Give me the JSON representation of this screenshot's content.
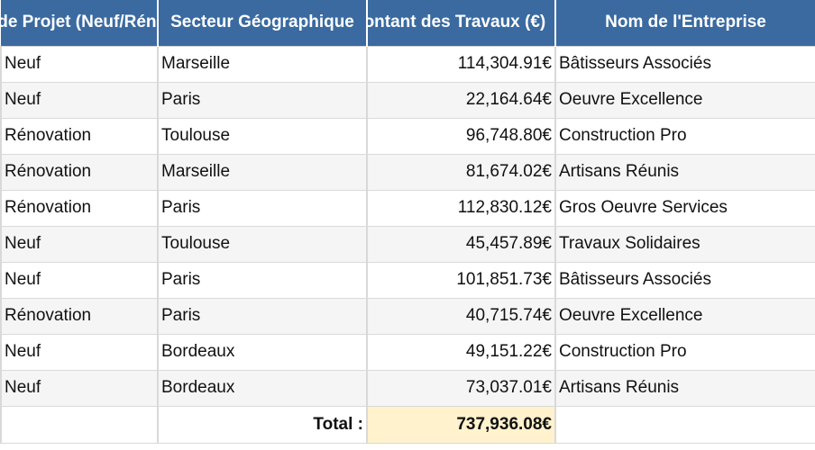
{
  "headers": [
    "Type de Projet (Neuf/Rénovation)",
    "Secteur Géographique",
    "Montant des Travaux (€)",
    "Nom de l'Entreprise"
  ],
  "rows": [
    {
      "type": "Neuf",
      "secteur": "Marseille",
      "montant": "114,304.91€",
      "entreprise": "Bâtisseurs Associés"
    },
    {
      "type": "Neuf",
      "secteur": "Paris",
      "montant": "22,164.64€",
      "entreprise": "Oeuvre Excellence"
    },
    {
      "type": "Rénovation",
      "secteur": "Toulouse",
      "montant": "96,748.80€",
      "entreprise": "Construction Pro"
    },
    {
      "type": "Rénovation",
      "secteur": "Marseille",
      "montant": "81,674.02€",
      "entreprise": "Artisans Réunis"
    },
    {
      "type": "Rénovation",
      "secteur": "Paris",
      "montant": "112,830.12€",
      "entreprise": "Gros Oeuvre Services"
    },
    {
      "type": "Neuf",
      "secteur": "Toulouse",
      "montant": "45,457.89€",
      "entreprise": "Travaux Solidaires"
    },
    {
      "type": "Neuf",
      "secteur": "Paris",
      "montant": "101,851.73€",
      "entreprise": "Bâtisseurs Associés"
    },
    {
      "type": "Rénovation",
      "secteur": "Paris",
      "montant": "40,715.74€",
      "entreprise": "Oeuvre Excellence"
    },
    {
      "type": "Neuf",
      "secteur": "Bordeaux",
      "montant": "49,151.22€",
      "entreprise": "Construction Pro"
    },
    {
      "type": "Neuf",
      "secteur": "Bordeaux",
      "montant": "73,037.01€",
      "entreprise": "Artisans Réunis"
    }
  ],
  "total": {
    "label": "Total :",
    "value": "737,936.08€"
  },
  "colors": {
    "header_bg": "#3a6aa0",
    "header_text": "#ffffff",
    "total_highlight": "#fff2cc",
    "row_alt": "#f5f5f5"
  }
}
